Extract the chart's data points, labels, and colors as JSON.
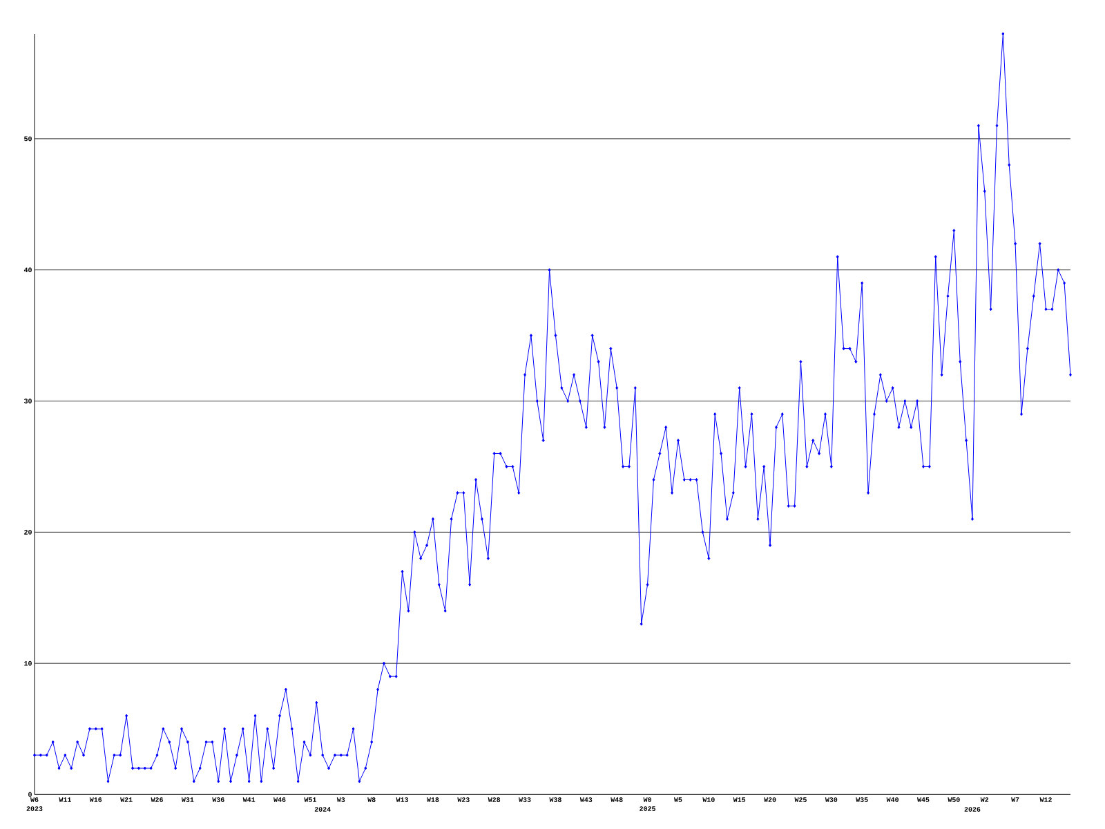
{
  "chart_data": {
    "type": "line",
    "color": "#0000ff",
    "marker": "diamond",
    "grid": "y",
    "categories": [
      "W6 2023",
      null,
      null,
      null,
      null,
      "W11",
      null,
      null,
      null,
      null,
      "W16",
      null,
      null,
      null,
      null,
      "W21",
      null,
      null,
      null,
      null,
      "W26",
      null,
      null,
      null,
      null,
      "W31",
      null,
      null,
      null,
      null,
      "W36",
      null,
      null,
      null,
      null,
      "W41",
      null,
      null,
      null,
      null,
      "W46",
      null,
      null,
      null,
      null,
      "W51",
      null,
      "2024",
      null,
      null,
      "W3",
      null,
      null,
      null,
      null,
      "W8",
      null,
      null,
      null,
      null,
      "W13",
      null,
      null,
      null,
      null,
      "W18",
      null,
      null,
      null,
      null,
      "W23",
      null,
      null,
      null,
      null,
      "W28",
      null,
      null,
      null,
      null,
      "W33",
      null,
      null,
      null,
      null,
      "W38",
      null,
      null,
      null,
      null,
      "W43",
      null,
      null,
      null,
      null,
      "W48",
      null,
      null,
      null,
      null,
      "W0 2025",
      null,
      null,
      null,
      null,
      "W5",
      null,
      null,
      null,
      null,
      "W10",
      null,
      null,
      null,
      null,
      "W15",
      null,
      null,
      null,
      null,
      "W20",
      null,
      null,
      null,
      null,
      "W25",
      null,
      null,
      null,
      null,
      "W30",
      null,
      null,
      null,
      null,
      "W35",
      null,
      null,
      null,
      null,
      "W40",
      null,
      null,
      null,
      null,
      "W45",
      null,
      null,
      null,
      null,
      "W50",
      null,
      null,
      "2026",
      null,
      "W2",
      null,
      null,
      null,
      null,
      "W7",
      null,
      null,
      null,
      null,
      "W12",
      null,
      null,
      null,
      null
    ],
    "values": [
      3,
      3,
      3,
      4,
      2,
      3,
      2,
      4,
      3,
      5,
      5,
      5,
      1,
      3,
      3,
      6,
      2,
      2,
      2,
      2,
      3,
      5,
      4,
      2,
      5,
      4,
      1,
      2,
      4,
      4,
      1,
      5,
      1,
      3,
      5,
      1,
      6,
      1,
      5,
      2,
      6,
      8,
      5,
      1,
      4,
      3,
      7,
      3,
      2,
      3,
      3,
      3,
      5,
      1,
      2,
      4,
      8,
      10,
      9,
      9,
      17,
      14,
      20,
      18,
      19,
      21,
      16,
      14,
      21,
      23,
      23,
      16,
      24,
      21,
      18,
      26,
      26,
      25,
      25,
      23,
      32,
      35,
      30,
      27,
      40,
      35,
      31,
      30,
      32,
      30,
      28,
      35,
      33,
      28,
      34,
      31,
      25,
      25,
      31,
      13,
      16,
      24,
      26,
      28,
      23,
      27,
      24,
      24,
      24,
      20,
      18,
      29,
      26,
      21,
      23,
      31,
      25,
      29,
      21,
      25,
      19,
      28,
      29,
      22,
      22,
      33,
      25,
      27,
      26,
      29,
      25,
      41,
      34,
      34,
      33,
      39,
      23,
      29,
      32,
      30,
      31,
      28,
      30,
      28,
      30,
      25,
      25,
      41,
      32,
      38,
      43,
      33,
      27,
      21,
      51,
      46,
      37,
      51,
      58,
      48,
      42,
      29,
      34,
      38,
      42,
      37,
      37,
      40,
      39,
      32
    ],
    "ylim": [
      0,
      58
    ],
    "yticks": [
      0,
      10,
      20,
      30,
      40,
      50
    ]
  }
}
